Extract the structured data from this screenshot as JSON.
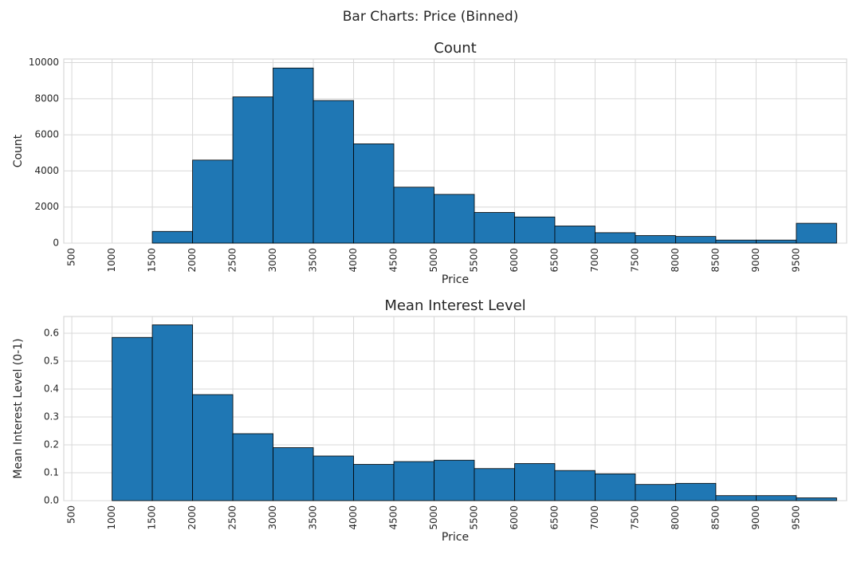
{
  "suptitle": "Bar Charts: Price (Binned)",
  "chart_data": [
    {
      "type": "histogram",
      "title": "Count",
      "xlabel": "Price",
      "ylabel": "Count",
      "color": "#1f77b4",
      "edgecolor": "#000000",
      "grid": true,
      "bins": [
        500,
        1000,
        1500,
        2000,
        2500,
        3000,
        3500,
        4000,
        4500,
        5000,
        5500,
        6000,
        6500,
        7000,
        7500,
        8000,
        8500,
        9000,
        9500,
        10000
      ],
      "values": [
        0,
        0,
        650,
        4600,
        8100,
        9700,
        7900,
        5500,
        3100,
        2700,
        1700,
        1450,
        950,
        580,
        420,
        370,
        170,
        170,
        1100
      ],
      "xlim": [
        400,
        10125
      ],
      "xticks": [
        500,
        1000,
        1500,
        2000,
        2500,
        3000,
        3500,
        4000,
        4500,
        5000,
        5500,
        6000,
        6500,
        7000,
        7500,
        8000,
        8500,
        9000,
        9500
      ],
      "ylim": [
        0,
        10200
      ],
      "yticks": [
        0,
        2000,
        4000,
        6000,
        8000,
        10000
      ]
    },
    {
      "type": "histogram",
      "title": "Mean Interest Level",
      "xlabel": "Price",
      "ylabel": "Mean Interest Level (0-1)",
      "color": "#1f77b4",
      "edgecolor": "#000000",
      "grid": true,
      "bins": [
        500,
        1000,
        1500,
        2000,
        2500,
        3000,
        3500,
        4000,
        4500,
        5000,
        5500,
        6000,
        6500,
        7000,
        7500,
        8000,
        8500,
        9000,
        9500,
        10000
      ],
      "values": [
        null,
        0.585,
        0.63,
        0.38,
        0.24,
        0.19,
        0.16,
        0.13,
        0.14,
        0.145,
        0.115,
        0.133,
        0.108,
        0.096,
        0.058,
        0.062,
        0.018,
        0.018,
        0.01
      ],
      "xlim": [
        400,
        10125
      ],
      "xticks": [
        500,
        1000,
        1500,
        2000,
        2500,
        3000,
        3500,
        4000,
        4500,
        5000,
        5500,
        6000,
        6500,
        7000,
        7500,
        8000,
        8500,
        9000,
        9500
      ],
      "ylim": [
        0,
        0.66
      ],
      "yticks": [
        {
          "value": 0,
          "label": "0.0"
        },
        0.1,
        0.2,
        0.3,
        0.4,
        0.5,
        0.6
      ]
    }
  ]
}
